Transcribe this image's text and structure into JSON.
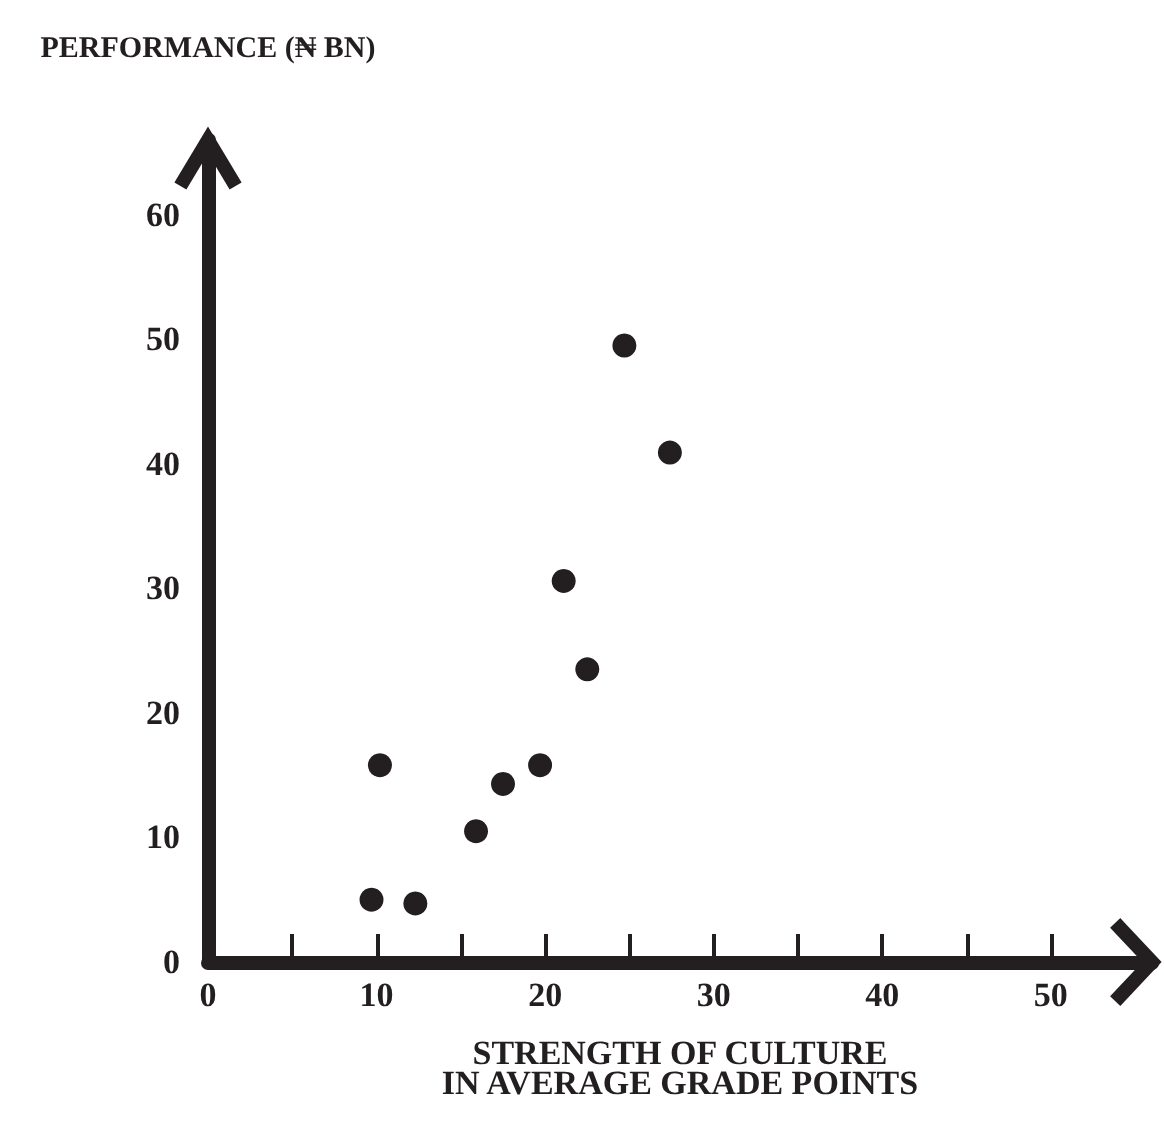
{
  "chart_data": {
    "type": "scatter",
    "xlabel": "STRENGTH OF CULTURE\nIN AVERAGE GRADE POINTS",
    "ylabel": "PERFORMANCE (₦ BN)",
    "x": [
      9.7,
      10.2,
      12.3,
      15.9,
      17.5,
      19.7,
      21.1,
      22.5,
      24.7,
      27.4
    ],
    "values": [
      5,
      15.8,
      4.7,
      10.5,
      14.3,
      15.8,
      30.6,
      23.5,
      49.5,
      40.9
    ],
    "color": "#231f20",
    "marker": "circle",
    "xlim": [
      0,
      56
    ],
    "ylim": [
      0,
      66
    ],
    "xticks": [
      0,
      {
        "value": 5,
        "label": null
      },
      10,
      {
        "value": 15,
        "label": null
      },
      20,
      {
        "value": 25,
        "label": null
      },
      30,
      {
        "value": 35,
        "label": null
      },
      40,
      {
        "value": 45,
        "label": null
      },
      50
    ],
    "yticks": [
      0,
      10,
      20,
      30,
      40,
      50,
      60
    ],
    "grid": false
  }
}
